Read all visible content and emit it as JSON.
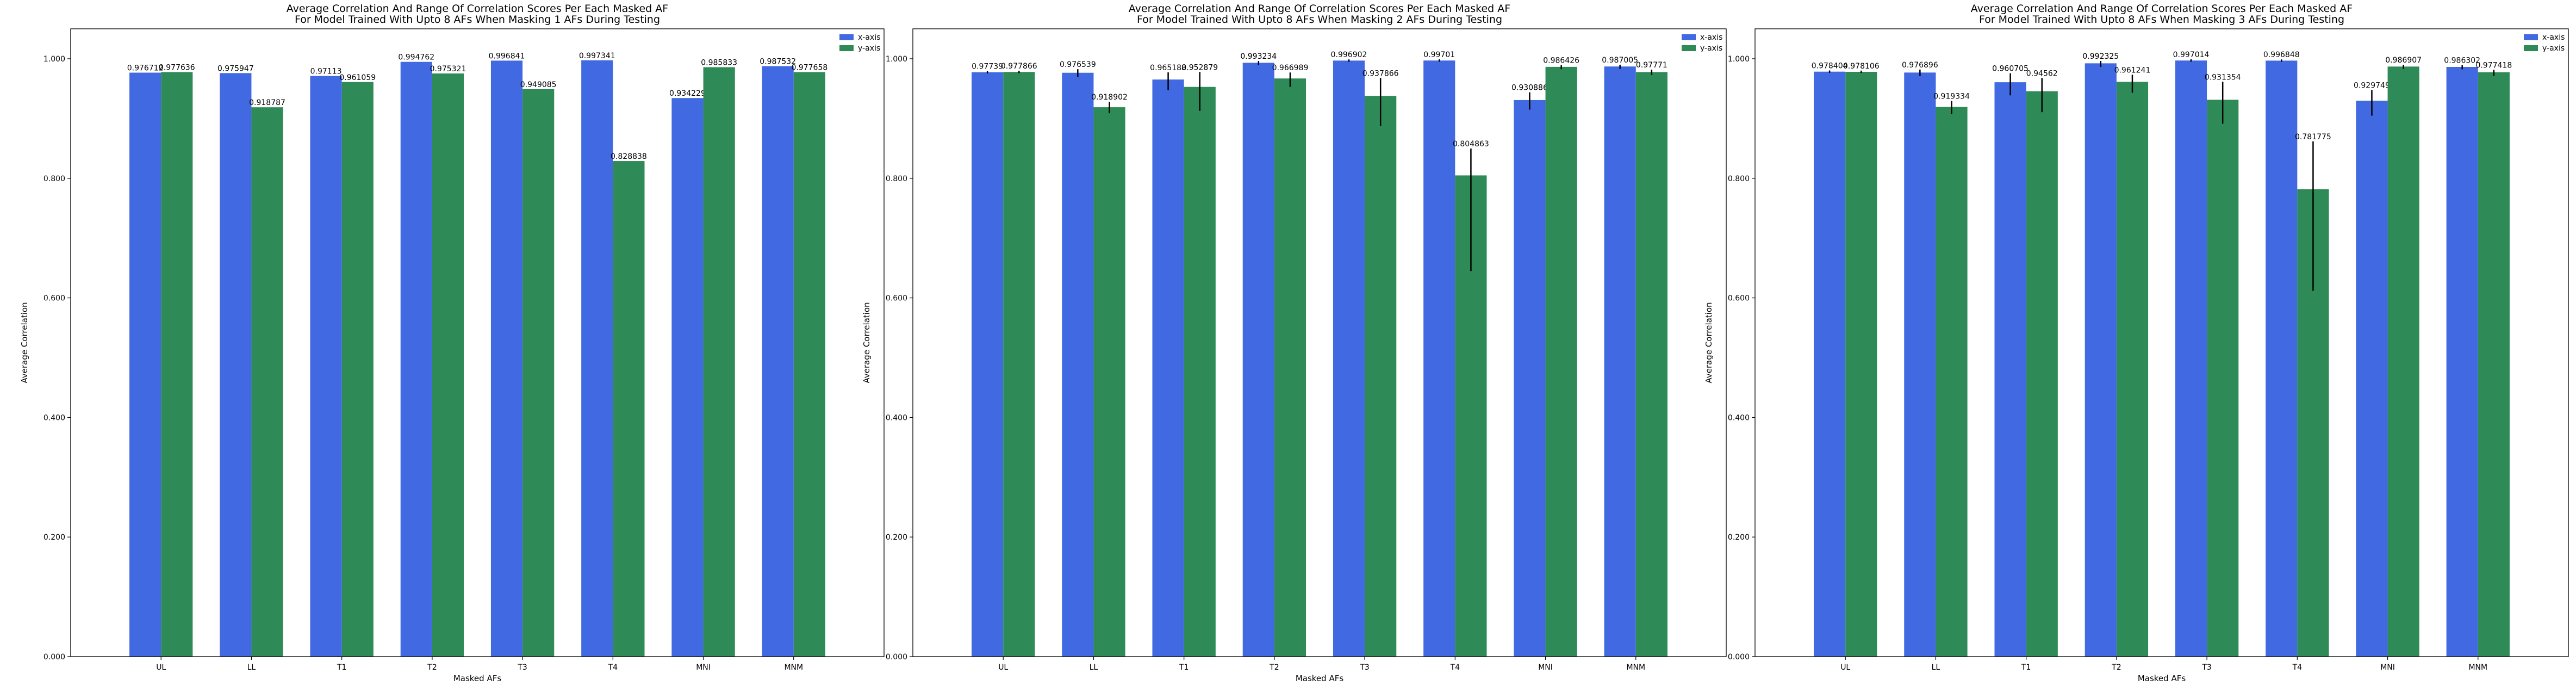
{
  "chart_data": [
    {
      "type": "bar",
      "title": "Average Correlation And Range Of Correlation Scores Per Each Masked AF\nFor Model Trained With Upto 8 AFs When Masking 1 AFs During Testing",
      "xlabel": "Masked AFs",
      "ylabel": "Average Correlation",
      "ylim": [
        0,
        1.05
      ],
      "yticks": [
        "0.000",
        "0.200",
        "0.400",
        "0.600",
        "0.800",
        "1.000"
      ],
      "categories": [
        "UL",
        "LL",
        "T1",
        "T2",
        "T3",
        "T4",
        "MNI",
        "MNM"
      ],
      "legend": "top-right",
      "grid": false,
      "series": [
        {
          "name": "x-axis",
          "color": "#4169e1",
          "values": [
            0.976712,
            0.975947,
            0.97113,
            0.994762,
            0.996841,
            0.997341,
            0.934229,
            0.987532
          ],
          "labels": [
            "0.976712",
            "0.975947",
            "0.97113",
            "0.994762",
            "0.996841",
            "0.997341",
            "0.934229",
            "0.987532"
          ],
          "err_low": [
            0,
            0,
            0,
            0,
            0,
            0,
            0,
            0
          ],
          "err_high": [
            0,
            0,
            0,
            0,
            0,
            0,
            0,
            0
          ]
        },
        {
          "name": "y-axis",
          "color": "#2e8b57",
          "values": [
            0.977636,
            0.918787,
            0.961059,
            0.975321,
            0.949085,
            0.828838,
            0.985833,
            0.977658
          ],
          "labels": [
            "0.977636",
            "0.918787",
            "0.961059",
            "0.975321",
            "0.949085",
            "0.828838",
            "0.985833",
            "0.977658"
          ],
          "err_low": [
            0,
            0,
            0,
            0,
            0,
            0,
            0,
            0
          ],
          "err_high": [
            0,
            0,
            0,
            0,
            0,
            0,
            0,
            0
          ]
        }
      ]
    },
    {
      "type": "bar",
      "title": "Average Correlation And Range Of Correlation Scores Per Each Masked AF\nFor Model Trained With Upto 8 AFs When Masking 2 AFs During Testing",
      "xlabel": "Masked AFs",
      "ylabel": "Average Correlation",
      "ylim": [
        0,
        1.05
      ],
      "yticks": [
        "0.000",
        "0.200",
        "0.400",
        "0.600",
        "0.800",
        "1.000"
      ],
      "categories": [
        "UL",
        "LL",
        "T1",
        "T2",
        "T3",
        "T4",
        "MNI",
        "MNM"
      ],
      "legend": "top-right",
      "grid": false,
      "series": [
        {
          "name": "x-axis",
          "color": "#4169e1",
          "values": [
            0.97739,
            0.976539,
            0.965188,
            0.993234,
            0.996902,
            0.99701,
            0.930886,
            0.987005
          ],
          "labels": [
            "0.97739",
            "0.976539",
            "0.965188",
            "0.993234",
            "0.996902",
            "0.99701",
            "0.930886",
            "0.987005"
          ],
          "err_low": [
            0.002,
            0.007,
            0.018,
            0.004,
            0.002,
            0.002,
            0.016,
            0.004
          ],
          "err_high": [
            0.002,
            0.006,
            0.012,
            0.003,
            0.002,
            0.002,
            0.013,
            0.003
          ]
        },
        {
          "name": "y-axis",
          "color": "#2e8b57",
          "values": [
            0.977866,
            0.918902,
            0.952879,
            0.966989,
            0.937866,
            0.804863,
            0.986426,
            0.97771
          ],
          "labels": [
            "0.977866",
            "0.918902",
            "0.952879",
            "0.966989",
            "0.937866",
            "0.804863",
            "0.986426",
            "0.97771"
          ],
          "err_low": [
            0.002,
            0.01,
            0.04,
            0.014,
            0.05,
            0.16,
            0.004,
            0.005
          ],
          "err_high": [
            0.002,
            0.009,
            0.025,
            0.01,
            0.03,
            0.045,
            0.003,
            0.004
          ]
        }
      ]
    },
    {
      "type": "bar",
      "title": "Average Correlation And Range Of Correlation Scores Per Each Masked AF\nFor Model Trained With Upto 8 AFs When Masking 3 AFs During Testing",
      "xlabel": "Masked AFs",
      "ylabel": "Average Correlation",
      "ylim": [
        0,
        1.05
      ],
      "yticks": [
        "0.000",
        "0.200",
        "0.400",
        "0.600",
        "0.800",
        "1.000"
      ],
      "categories": [
        "UL",
        "LL",
        "T1",
        "T2",
        "T3",
        "T4",
        "MNI",
        "MNM"
      ],
      "legend": "top-right",
      "grid": false,
      "series": [
        {
          "name": "x-axis",
          "color": "#4169e1",
          "values": [
            0.978404,
            0.976896,
            0.960705,
            0.992325,
            0.997014,
            0.996848,
            0.929749,
            0.986302
          ],
          "labels": [
            "0.978404",
            "0.976896",
            "0.960705",
            "0.992325",
            "0.997014",
            "0.996848",
            "0.929749",
            "0.986302"
          ],
          "err_low": [
            0.002,
            0.006,
            0.022,
            0.006,
            0.002,
            0.002,
            0.025,
            0.004
          ],
          "err_high": [
            0.002,
            0.005,
            0.015,
            0.004,
            0.002,
            0.002,
            0.018,
            0.003
          ]
        },
        {
          "name": "y-axis",
          "color": "#2e8b57",
          "values": [
            0.978106,
            0.919334,
            0.94562,
            0.961241,
            0.931354,
            0.781775,
            0.986907,
            0.977418
          ],
          "labels": [
            "0.978106",
            "0.919334",
            "0.94562",
            "0.961241",
            "0.931354",
            "0.781775",
            "0.986907",
            "0.977418"
          ],
          "err_low": [
            0.002,
            0.012,
            0.035,
            0.018,
            0.04,
            0.17,
            0.004,
            0.006
          ],
          "err_high": [
            0.002,
            0.01,
            0.022,
            0.012,
            0.03,
            0.08,
            0.003,
            0.004
          ]
        }
      ]
    }
  ]
}
